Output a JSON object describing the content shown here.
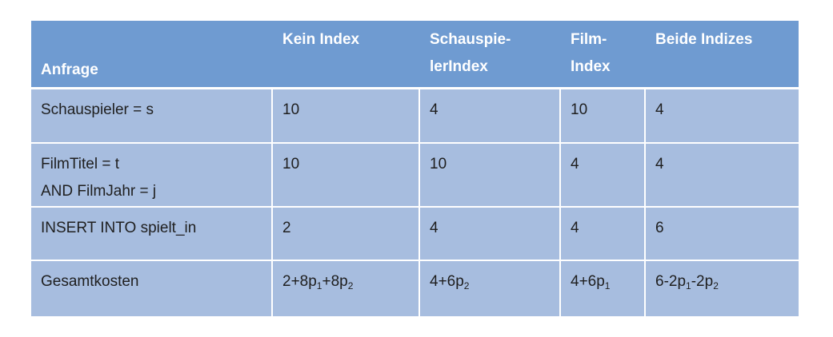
{
  "table": {
    "headers": {
      "anfrage": "Anfrage",
      "kein_index": "Kein Index",
      "schauspieler_index_line1": "Schauspie-",
      "schauspieler_index_line2": "lerIndex",
      "film_index_line1": "Film-",
      "film_index_line2": "Index",
      "beide_indizes": "Beide Indizes"
    },
    "rows": [
      {
        "query_line1": "Schauspieler = s",
        "kein_index": "10",
        "schauspieler_index": "4",
        "film_index": "10",
        "beide_indizes": "4"
      },
      {
        "query_line1": "FilmTitel = t",
        "query_line2": "AND FilmJahr = j",
        "kein_index": "10",
        "schauspieler_index": "10",
        "film_index": "4",
        "beide_indizes": "4"
      },
      {
        "query_line1": "INSERT INTO spielt_in",
        "kein_index": "2",
        "schauspieler_index": "4",
        "film_index": "4",
        "beide_indizes": "6"
      }
    ],
    "total": {
      "label": "Gesamtkosten",
      "kein_index": {
        "a": "2+8p",
        "s1": "1",
        "b": "+8p",
        "s2": "2"
      },
      "schauspieler_index": {
        "a": "4+6p",
        "s1": "2"
      },
      "film_index": {
        "a": "4+6p",
        "s1": "1"
      },
      "beide_indizes": {
        "a": "6-2p",
        "s1": "1",
        "b": "-2p",
        "s2": "2"
      }
    }
  }
}
